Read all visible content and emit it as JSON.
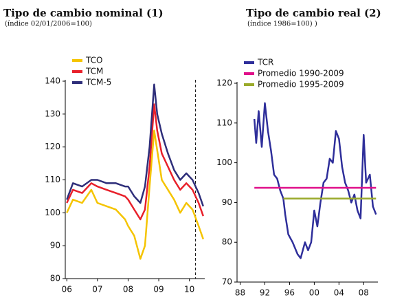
{
  "chart_data": [
    {
      "type": "line",
      "title": "Tipo de cambio nominal (1)",
      "subtitle": "(índice 02/01/2006=100)",
      "x": [
        2006,
        2006.2,
        2006.5,
        2006.8,
        2007,
        2007.3,
        2007.6,
        2007.9,
        2008.0,
        2008.2,
        2008.4,
        2008.55,
        2008.7,
        2008.85,
        2008.95,
        2009.1,
        2009.3,
        2009.5,
        2009.7,
        2009.9,
        2010.1,
        2010.3,
        2010.45
      ],
      "series": [
        {
          "name": "TCO",
          "color": "#f5c400",
          "values": [
            100,
            104,
            103,
            107,
            103,
            102,
            101,
            98,
            96,
            93,
            86,
            90,
            108,
            125,
            119,
            110,
            107,
            104,
            100,
            103,
            101,
            96,
            92
          ]
        },
        {
          "name": "TCM",
          "color": "#e8202a",
          "values": [
            103,
            107,
            106,
            109,
            108,
            107,
            106,
            105,
            104,
            101,
            98,
            101,
            114,
            133,
            125,
            118,
            114,
            110,
            107,
            109,
            107,
            103,
            99
          ]
        },
        {
          "name": "TCM-5",
          "color": "#2e2e7a",
          "values": [
            104,
            109,
            108,
            110,
            110,
            109,
            109,
            108,
            108,
            105,
            103,
            108,
            120,
            139,
            130,
            124,
            118,
            113,
            110,
            112,
            110,
            106,
            102
          ]
        }
      ],
      "vline_x": 2010.2,
      "xlim": [
        2005.95,
        2010.5
      ],
      "xticks": [
        {
          "value": 2006,
          "label": "06"
        },
        {
          "value": 2007,
          "label": "07"
        },
        {
          "value": 2008,
          "label": "08"
        },
        {
          "value": 2009,
          "label": "09"
        },
        {
          "value": 2010,
          "label": "10"
        }
      ],
      "ylim": [
        80,
        140
      ],
      "yticks": [
        80,
        90,
        100,
        110,
        120,
        130,
        140
      ]
    },
    {
      "type": "line",
      "title": "Tipo de cambio real (2)",
      "subtitle": "(índice 1986=100) )",
      "x": [
        1990.3,
        1990.6,
        1991,
        1991.5,
        1992,
        1992.5,
        1993,
        1993.5,
        1994,
        1994.5,
        1995,
        1995.3,
        1995.8,
        1996.5,
        1997.3,
        1997.8,
        1998.5,
        1999,
        1999.5,
        2000,
        2000.5,
        2001,
        2001.5,
        2002,
        2002.5,
        2003,
        2003.5,
        2004,
        2004.5,
        2005,
        2005.5,
        2006,
        2006.5,
        2007,
        2007.5,
        2008,
        2008.4,
        2009,
        2009.5,
        2010
      ],
      "series": [
        {
          "name": "TCR",
          "color": "#2e2e9a",
          "values": [
            111,
            105,
            113,
            104,
            115,
            108,
            103,
            97,
            96,
            93,
            91,
            87,
            82,
            80,
            77,
            76,
            80,
            78,
            80,
            88,
            84,
            90,
            95,
            96,
            101,
            100,
            108,
            106,
            99,
            95,
            93,
            90,
            92,
            88,
            86,
            107,
            95,
            97,
            89,
            87
          ]
        },
        {
          "name": "Promedio 1990-2009",
          "color": "#e0108a",
          "x": [
            1990.3,
            2010
          ],
          "values": [
            93.7,
            93.7
          ]
        },
        {
          "name": "Promedio 1995-2009",
          "color": "#9aaa2a",
          "x": [
            1995,
            2010
          ],
          "values": [
            91,
            91
          ]
        }
      ],
      "xlim": [
        1987.5,
        2010.3
      ],
      "xticks": [
        {
          "value": 1988,
          "label": "88"
        },
        {
          "value": 1992,
          "label": "92"
        },
        {
          "value": 1996,
          "label": "96"
        },
        {
          "value": 2000,
          "label": "00"
        },
        {
          "value": 2004,
          "label": "04"
        },
        {
          "value": 2008,
          "label": "08"
        }
      ],
      "ylim": [
        70,
        120
      ],
      "yticks": [
        70,
        80,
        90,
        100,
        110,
        120
      ]
    }
  ]
}
